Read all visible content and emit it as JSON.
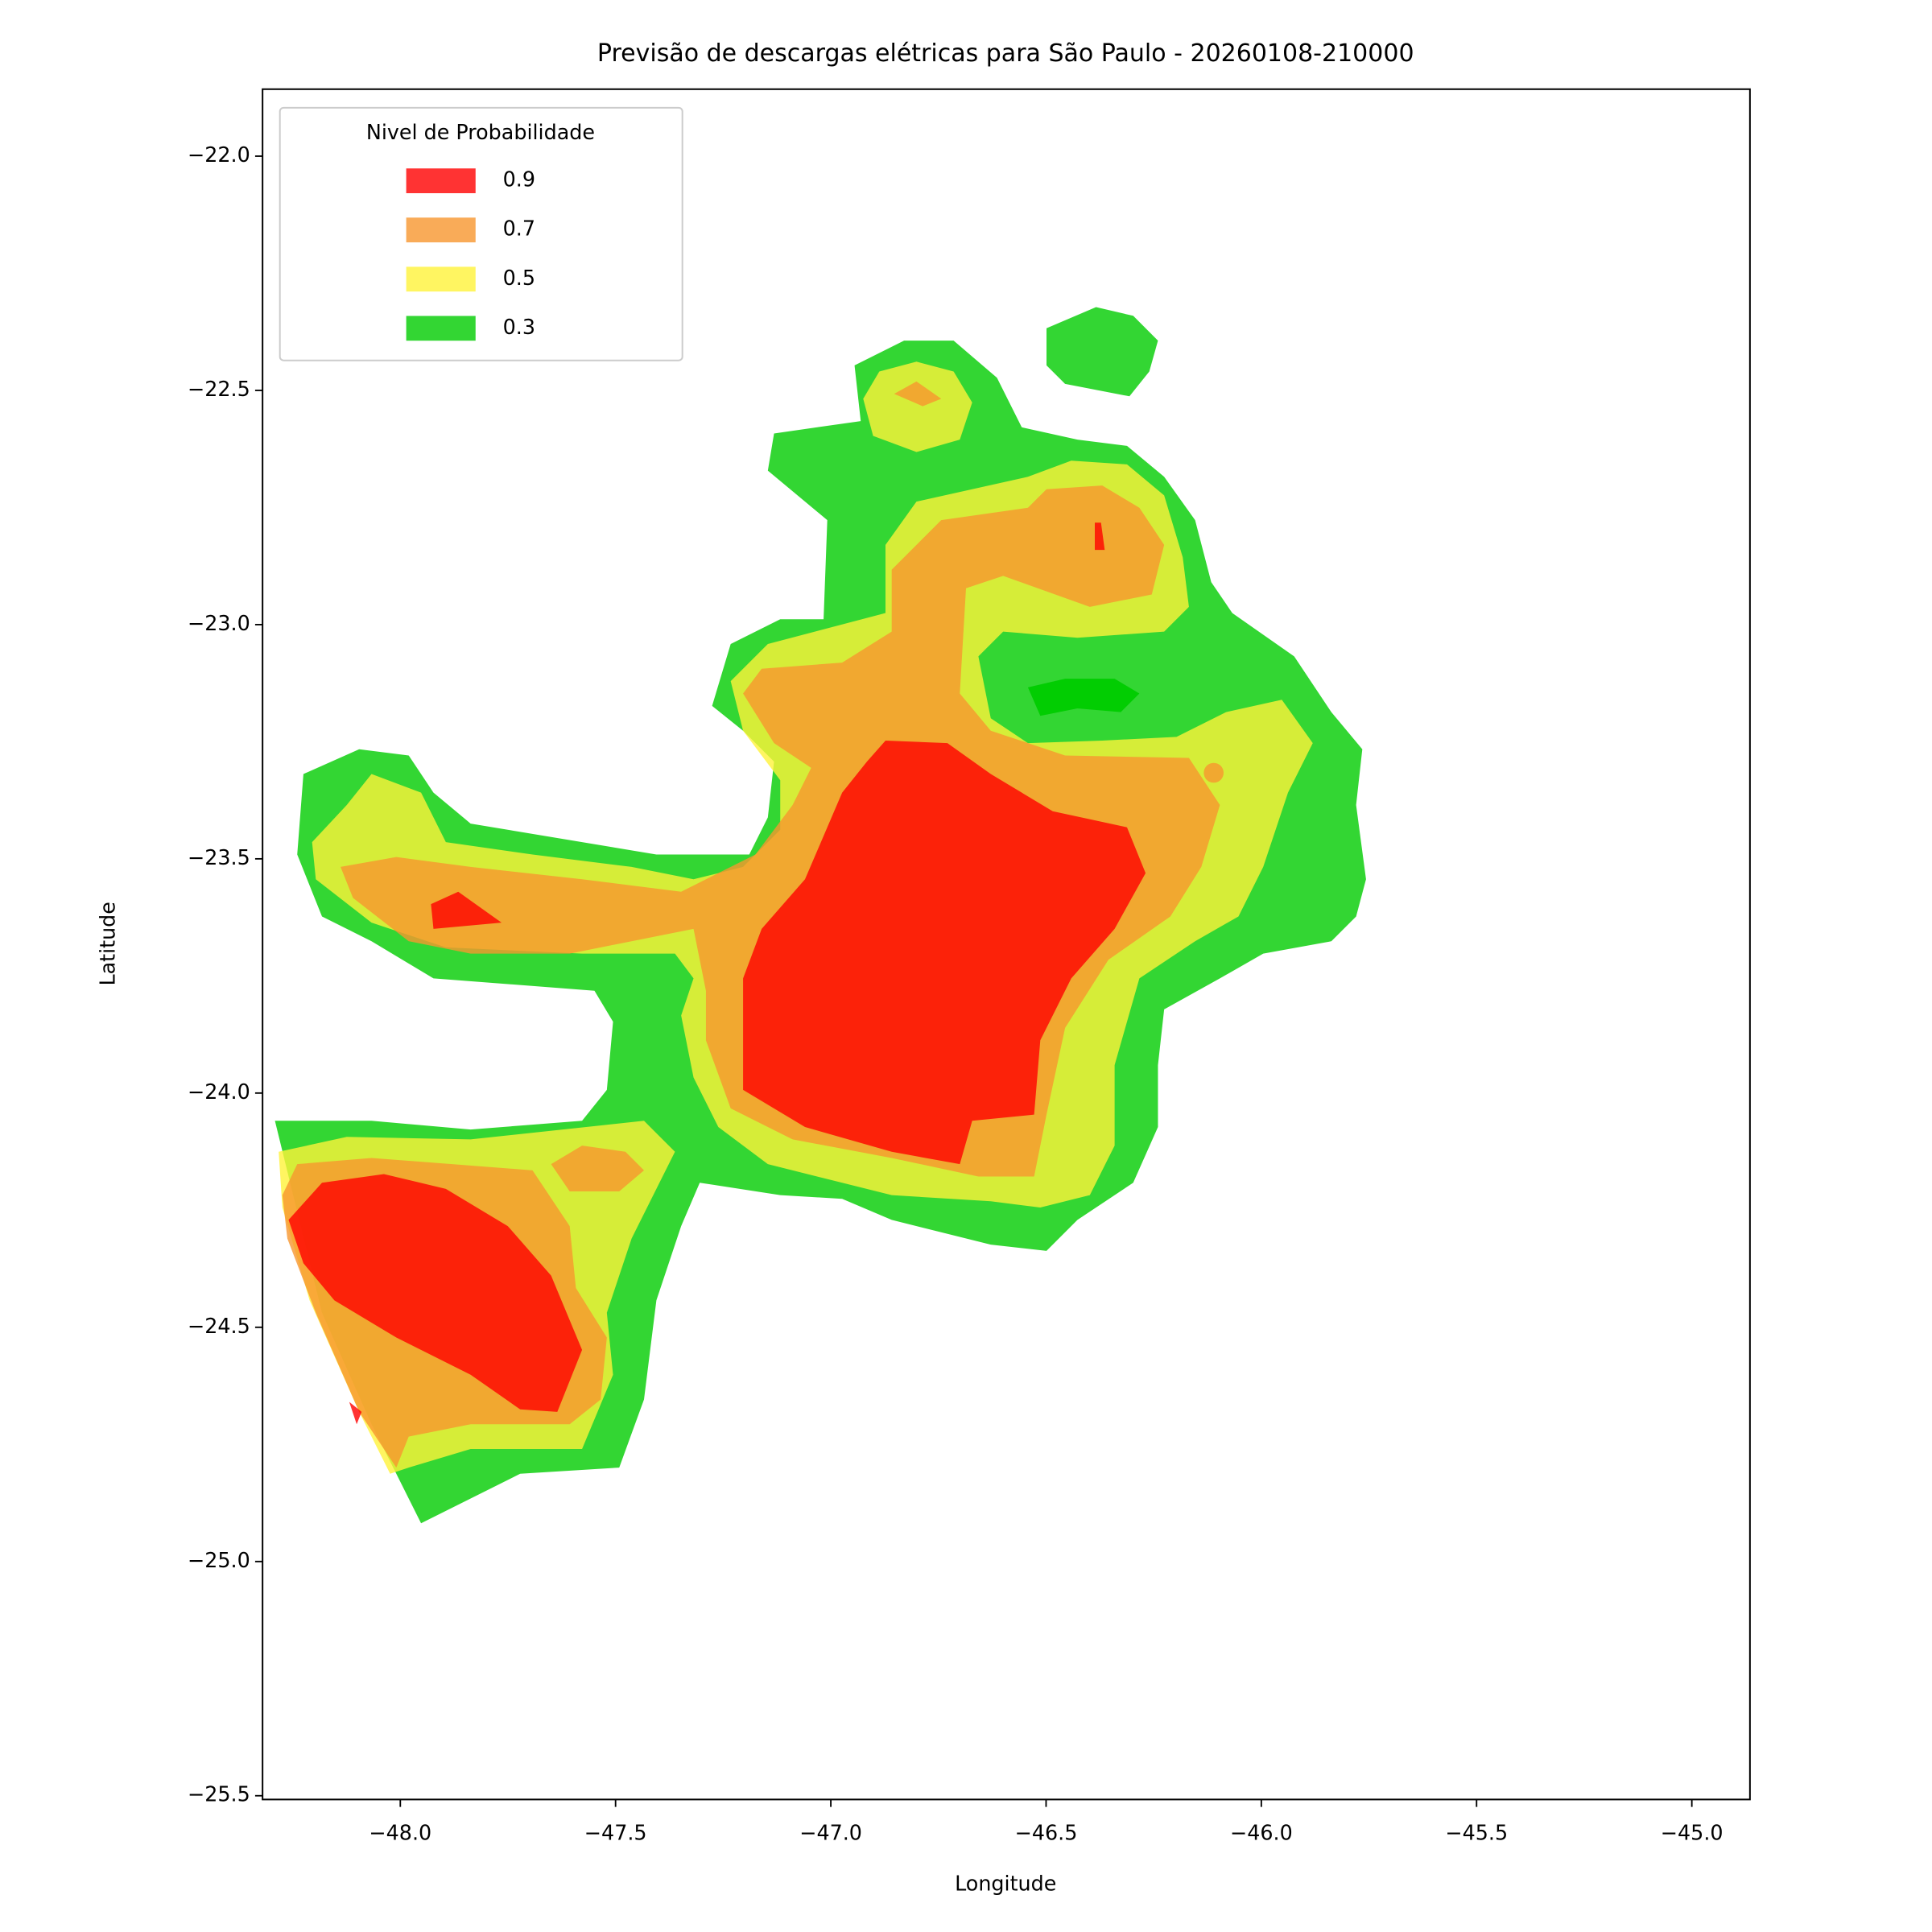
{
  "chart_data": {
    "type": "contour",
    "title": "Previsão de descargas elétricas para São Paulo - 20260108-210000",
    "xlabel": "Longitude",
    "ylabel": "Latitude",
    "xlim": [
      -48.32,
      -44.865
    ],
    "ylim": [
      -25.508,
      -21.857
    ],
    "xticks": [
      {
        "value": -48.0,
        "label": "−48.0"
      },
      {
        "value": -47.5,
        "label": "−47.5"
      },
      {
        "value": -47.0,
        "label": "−47.0"
      },
      {
        "value": -46.5,
        "label": "−46.5"
      },
      {
        "value": -46.0,
        "label": "−46.0"
      },
      {
        "value": -45.5,
        "label": "−45.5"
      },
      {
        "value": -45.0,
        "label": "−45.0"
      }
    ],
    "yticks": [
      {
        "value": -22.0,
        "label": "−22.0"
      },
      {
        "value": -22.5,
        "label": "−22.5"
      },
      {
        "value": -23.0,
        "label": "−23.0"
      },
      {
        "value": -23.5,
        "label": "−23.5"
      },
      {
        "value": -24.0,
        "label": "−24.0"
      },
      {
        "value": -24.5,
        "label": "−24.5"
      },
      {
        "value": -25.0,
        "label": "−25.0"
      },
      {
        "value": -25.5,
        "label": "−25.5"
      }
    ],
    "legend_title": "Nivel de Probabilidade",
    "legend_loc": "upper left",
    "levels": [
      0.9,
      0.7,
      0.5,
      0.3
    ],
    "colors": [
      "#ff0000",
      "#f8962e",
      "#fff23a",
      "#00cc00"
    ]
  }
}
